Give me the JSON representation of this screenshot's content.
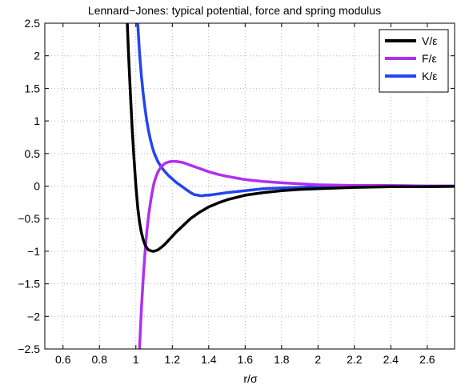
{
  "chart_data": {
    "type": "line",
    "title": "Lennard−Jones: typical potential, force and spring modulus",
    "xlabel": "r/σ",
    "ylabel": "",
    "xlim": [
      0.5,
      2.75
    ],
    "ylim": [
      -2.5,
      2.5
    ],
    "x_ticks": [
      0.6,
      0.8,
      1,
      1.2,
      1.4,
      1.6,
      1.8,
      2,
      2.2,
      2.4,
      2.6
    ],
    "x_tick_labels": [
      "0.6",
      "0.8",
      "1",
      "1.2",
      "1.4",
      "1.6",
      "1.8",
      "2",
      "2.2",
      "2.4",
      "2.6"
    ],
    "y_ticks": [
      -2.5,
      -2,
      -1.5,
      -1,
      -0.5,
      0,
      0.5,
      1,
      1.5,
      2,
      2.5
    ],
    "y_tick_labels": [
      "−2.5",
      "−2",
      "−1.5",
      "−1",
      "−0.5",
      "0",
      "0.5",
      "1",
      "1.5",
      "2",
      "2.5"
    ],
    "grid": true,
    "legend_position": "top-right",
    "series": [
      {
        "name": "V/ε",
        "color": "#000000",
        "x": [
          0.95,
          0.96,
          0.97,
          0.98,
          0.99,
          1.0,
          1.01,
          1.02,
          1.03,
          1.04,
          1.05,
          1.06,
          1.07,
          1.08,
          1.09,
          1.1,
          1.11,
          1.12,
          1.13,
          1.14,
          1.16,
          1.18,
          1.2,
          1.22,
          1.25,
          1.28,
          1.3,
          1.35,
          1.4,
          1.45,
          1.5,
          1.6,
          1.7,
          1.8,
          1.9,
          2.0,
          2.2,
          2.4,
          2.6,
          2.75
        ],
        "y": [
          2.7,
          2.0,
          1.4,
          0.87,
          0.41,
          0.0,
          -0.33,
          -0.55,
          -0.71,
          -0.82,
          -0.9,
          -0.95,
          -0.98,
          -0.99,
          -1.0,
          -1.0,
          -0.99,
          -0.98,
          -0.96,
          -0.94,
          -0.89,
          -0.83,
          -0.77,
          -0.71,
          -0.63,
          -0.55,
          -0.5,
          -0.4,
          -0.32,
          -0.26,
          -0.21,
          -0.14,
          -0.1,
          -0.07,
          -0.05,
          -0.04,
          -0.02,
          -0.01,
          -0.01,
          -0.005
        ]
      },
      {
        "name": "F/ε",
        "color": "#b030ee",
        "x": [
          1.02,
          1.03,
          1.04,
          1.05,
          1.06,
          1.07,
          1.08,
          1.09,
          1.1,
          1.11,
          1.12,
          1.13,
          1.14,
          1.16,
          1.18,
          1.2,
          1.22,
          1.24,
          1.26,
          1.28,
          1.3,
          1.35,
          1.4,
          1.45,
          1.5,
          1.6,
          1.7,
          1.8,
          2.0,
          2.2,
          2.4,
          2.6,
          2.75
        ],
        "y": [
          -2.5,
          -1.9,
          -1.42,
          -1.02,
          -0.7,
          -0.45,
          -0.25,
          -0.08,
          0.05,
          0.14,
          0.21,
          0.26,
          0.3,
          0.35,
          0.37,
          0.38,
          0.38,
          0.37,
          0.36,
          0.34,
          0.32,
          0.27,
          0.22,
          0.18,
          0.15,
          0.1,
          0.07,
          0.05,
          0.02,
          0.01,
          0.01,
          0.0,
          0.0
        ]
      },
      {
        "name": "K/ε",
        "color": "#2445ee",
        "x": [
          1.01,
          1.02,
          1.03,
          1.04,
          1.05,
          1.06,
          1.07,
          1.08,
          1.09,
          1.1,
          1.12,
          1.14,
          1.16,
          1.18,
          1.2,
          1.22,
          1.24,
          1.26,
          1.28,
          1.3,
          1.32,
          1.34,
          1.36,
          1.38,
          1.4,
          1.45,
          1.5,
          1.6,
          1.7,
          1.8,
          2.0,
          2.2,
          2.4,
          2.6,
          2.75
        ],
        "y": [
          2.5,
          2.05,
          1.7,
          1.42,
          1.19,
          1.0,
          0.84,
          0.71,
          0.6,
          0.51,
          0.38,
          0.29,
          0.22,
          0.16,
          0.11,
          0.06,
          0.02,
          -0.02,
          -0.06,
          -0.1,
          -0.13,
          -0.14,
          -0.15,
          -0.14,
          -0.14,
          -0.12,
          -0.1,
          -0.07,
          -0.04,
          -0.03,
          -0.01,
          -0.005,
          0.0,
          0.0,
          0.0
        ]
      }
    ]
  }
}
